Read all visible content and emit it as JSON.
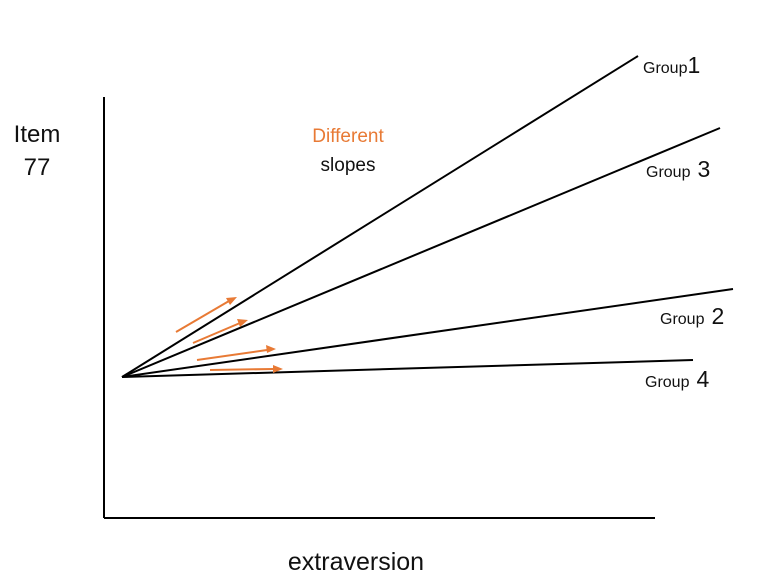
{
  "y_label_line1": "Item",
  "y_label_line2": "77",
  "x_label": "extraversion",
  "annotation": {
    "line1": "Different",
    "line2": "slopes",
    "highlight_color": "#e87a35"
  },
  "groups": [
    {
      "word": "Group",
      "number": "1"
    },
    {
      "word": "Group",
      "number": "3"
    },
    {
      "word": "Group",
      "number": "2"
    },
    {
      "word": "Group",
      "number": "4"
    }
  ],
  "colors": {
    "line": "#000000",
    "arrow": "#e87a35",
    "text": "#111111"
  }
}
